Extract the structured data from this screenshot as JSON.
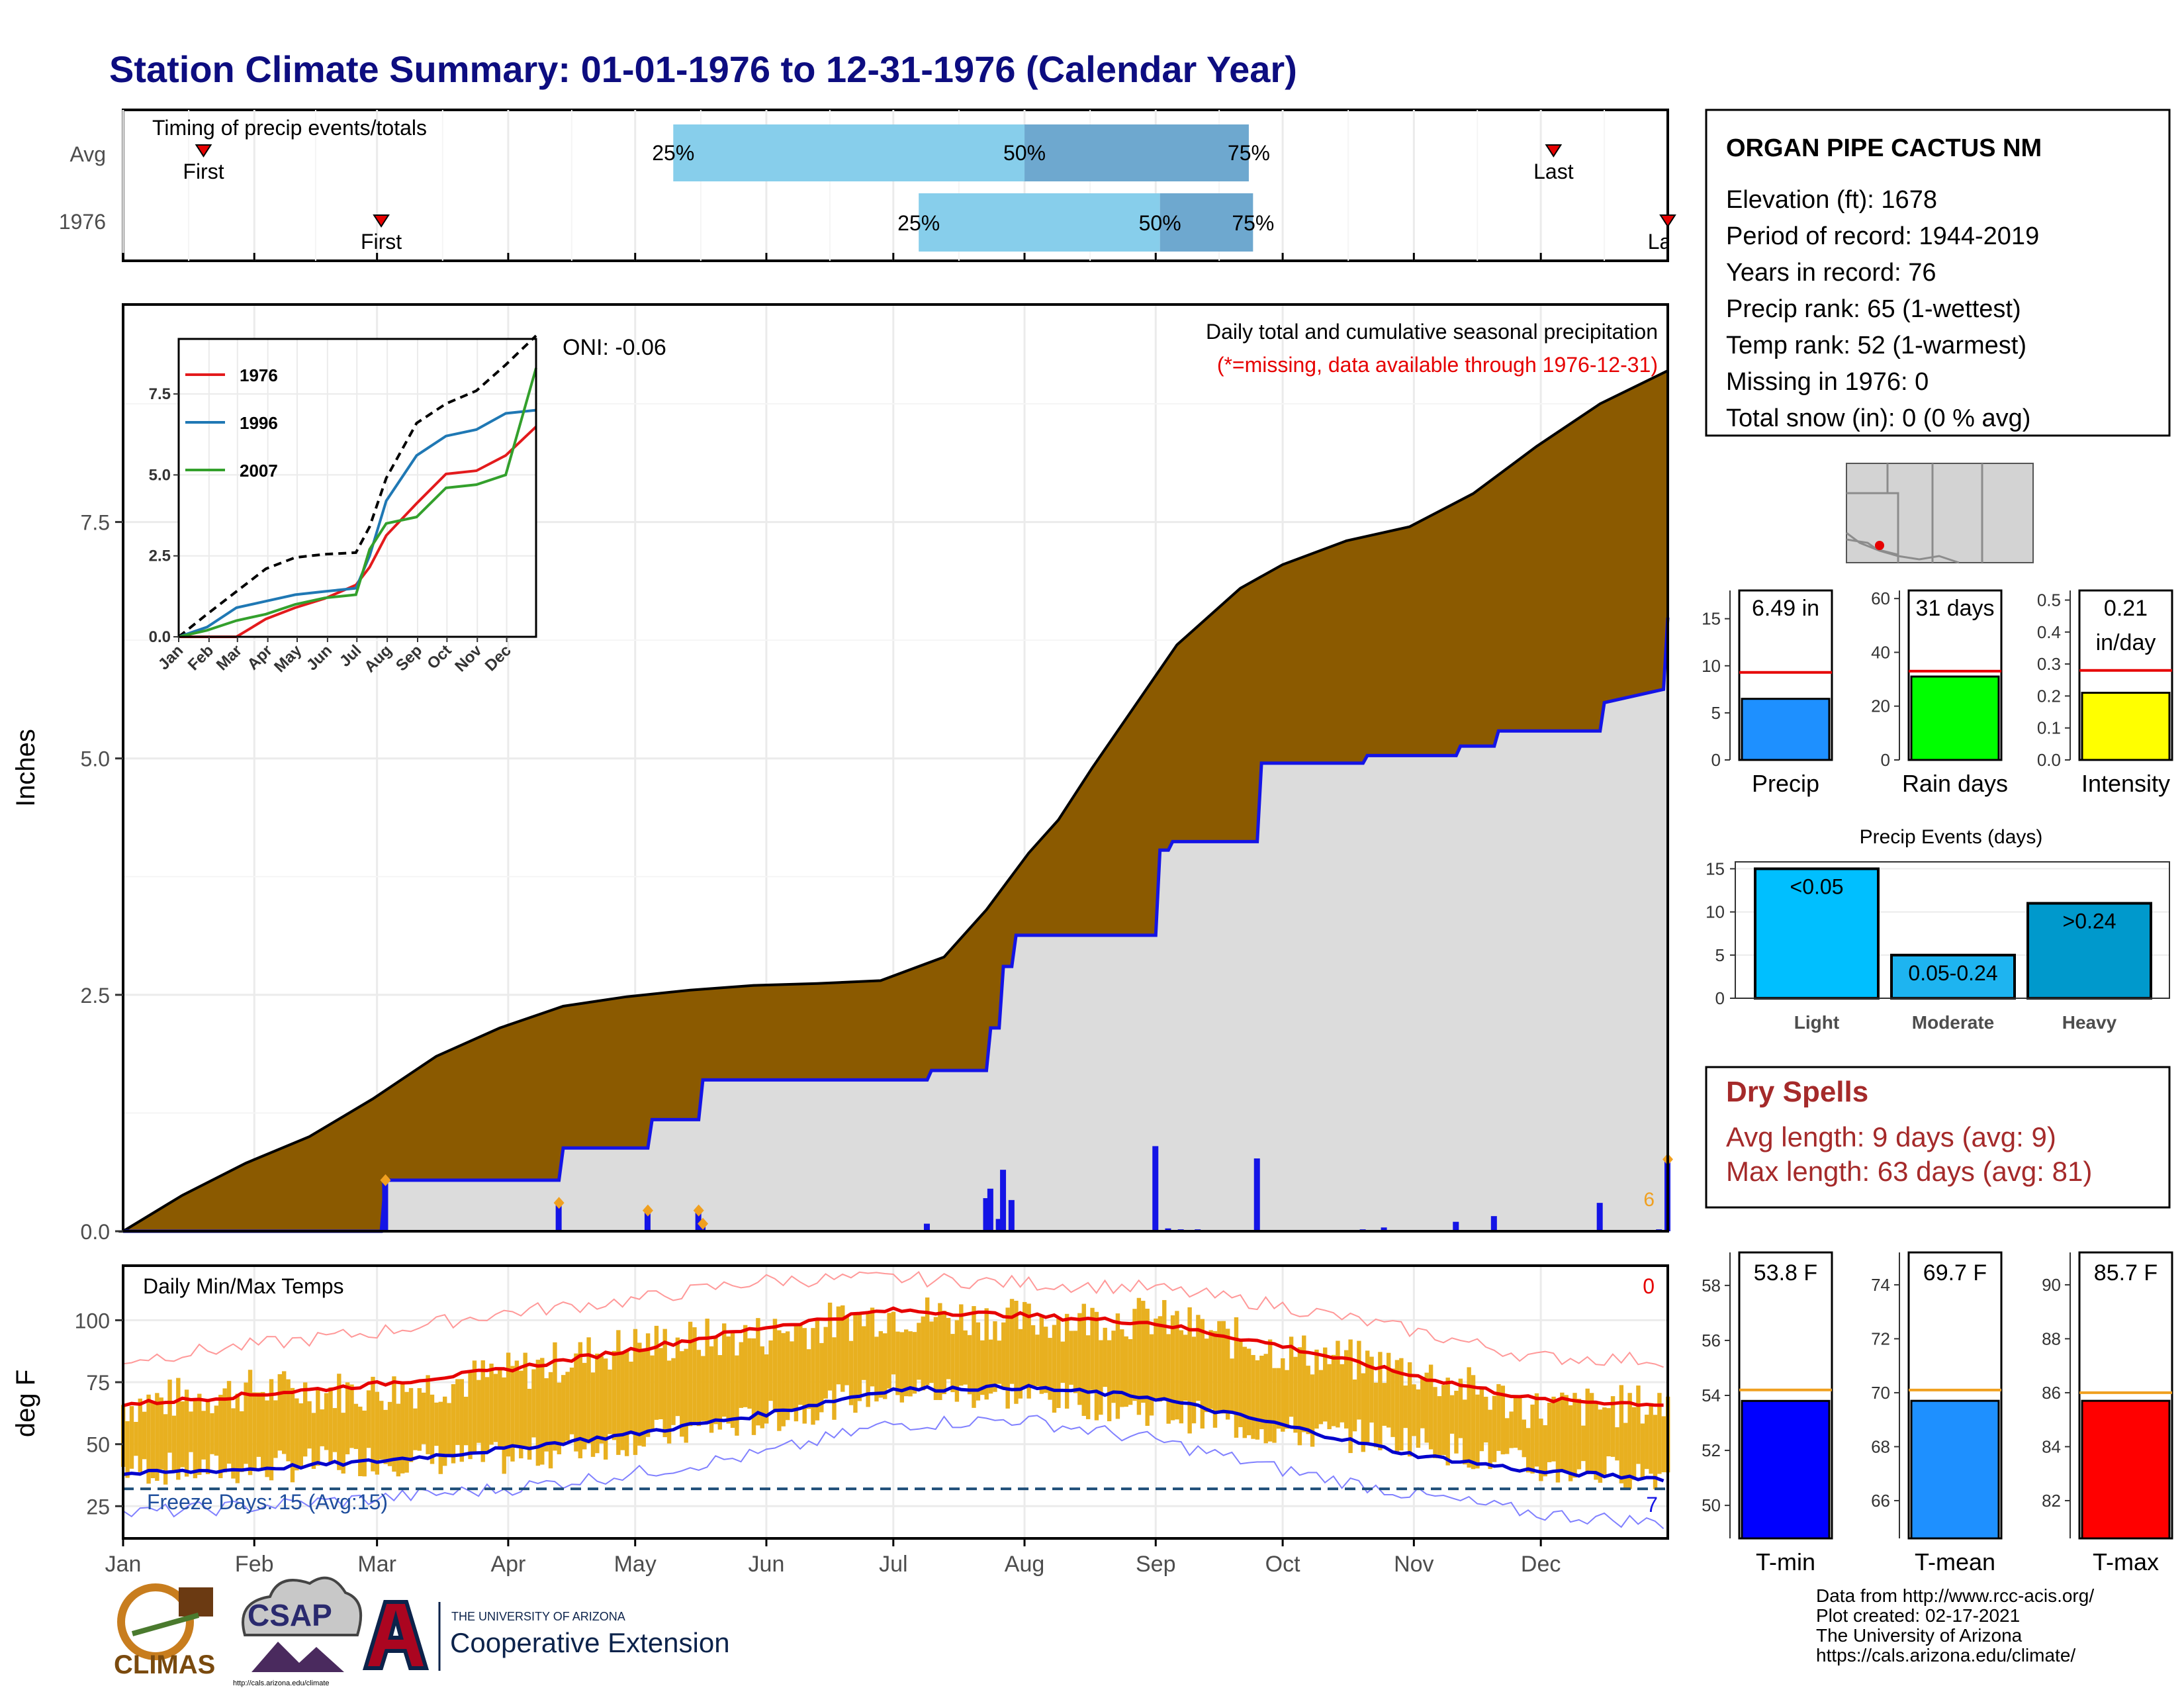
{
  "title": "Station Climate Summary: 01-01-1976 to 12-31-1976 (Calendar Year)",
  "colors": {
    "title": "#0d0d80",
    "cumulative_fill": "#8b5a00",
    "current_fill": "#dcdcdc",
    "current_line": "#1414e6",
    "bar_blue": "#1414e6",
    "bar_marker": "#f0a020",
    "timing_light": "#87ceeb",
    "timing_dark": "#6ea8cf",
    "temp_band": "#e8b020",
    "tmax_line": "#e60000",
    "tmin_line": "#0000cc",
    "dry_text": "#a52a2a",
    "precip_bar": "#1e90ff",
    "raindays_bar": "#00ff00",
    "intensity_bar": "#ffff00",
    "events_light": "#00bfff",
    "events_moderate": "#1eb4f0",
    "events_heavy": "#0099cc",
    "tmin_bar": "#0000ff",
    "tmean_bar": "#1e90ff",
    "tmax_bar": "#ff0000"
  },
  "timing": {
    "title": "Timing of precip events/totals",
    "rows": [
      {
        "label": "Avg",
        "first_label": "First",
        "last_label": "Last",
        "first": "Jan 20",
        "last": "Dec 4",
        "p25_label": "25%",
        "p50_label": "50%",
        "p75_label": "75%",
        "p25": "May 10",
        "p50": "Aug 1",
        "p75": "Sep 23"
      },
      {
        "label": "1976",
        "first_label": "First",
        "last_label": "Last",
        "first": "Mar 2",
        "last": "Dec 31",
        "p25_label": "25%",
        "p50_label": "50%",
        "p75_label": "75%",
        "p25": "Jul 7",
        "p50": "Sep 2",
        "p75": "Sep 24"
      }
    ]
  },
  "main_chart": {
    "ylabel": "Inches",
    "yticks": [
      "0.0",
      "2.5",
      "5.0",
      "7.5"
    ],
    "title_right": "Daily total and cumulative seasonal precipitation",
    "missing_note": "(*=missing, data available through 1976-12-31)",
    "oni": "ONI: -0.06",
    "corner_count": "6"
  },
  "inset": {
    "yticks": [
      "0.0",
      "2.5",
      "5.0",
      "7.5"
    ],
    "xticks": [
      "Jan",
      "Feb",
      "Mar",
      "Apr",
      "May",
      "Jun",
      "Jul",
      "Aug",
      "Sep",
      "Oct",
      "Nov",
      "Dec"
    ],
    "legend": [
      {
        "name": "1976",
        "color": "#e31a1c"
      },
      {
        "name": "1996",
        "color": "#1f78b4"
      },
      {
        "name": "2007",
        "color": "#33a02c"
      }
    ]
  },
  "temp_chart": {
    "ylabel": "deg F",
    "title": "Daily Min/Max Temps",
    "yticks": [
      "25",
      "50",
      "75",
      "100"
    ],
    "freeze_label": "Freeze Days: 15 (Avg:15)",
    "corner_top": "0",
    "corner_bottom": "7"
  },
  "months": [
    "Jan",
    "Feb",
    "Mar",
    "Apr",
    "May",
    "Jun",
    "Jul",
    "Aug",
    "Sep",
    "Oct",
    "Nov",
    "Dec"
  ],
  "station": {
    "name": "ORGAN PIPE CACTUS NM",
    "lines": [
      "Elevation (ft): 1678",
      "Period of record: 1944-2019",
      "Years in record: 76",
      "Precip rank: 65 (1-wettest)",
      "Temp rank: 52 (1-warmest)",
      "Missing in 1976: 0",
      "Total snow (in): 0 (0 % avg)"
    ]
  },
  "mini_bars": [
    {
      "label": "Precip",
      "value_label": "6.49 in",
      "yticks": [
        "0",
        "5",
        "10",
        "15"
      ],
      "ymax": 18
    },
    {
      "label": "Rain days",
      "value_label": "31 days",
      "yticks": [
        "0",
        "20",
        "40",
        "60"
      ],
      "ymax": 63
    },
    {
      "label": "Intensity",
      "value_label": "0.21\nin/day",
      "yticks": [
        "0.0",
        "0.1",
        "0.2",
        "0.3",
        "0.4",
        "0.5"
      ],
      "ymax": 0.53
    }
  ],
  "events": {
    "title": "Precip Events (days)",
    "yticks": [
      "0",
      "5",
      "10",
      "15"
    ],
    "categories": [
      "Light",
      "Moderate",
      "Heavy"
    ],
    "bar_labels": [
      "<0.05",
      "0.05-0.24",
      ">0.24"
    ]
  },
  "dry_spells": {
    "title": "Dry Spells",
    "avg_length": "Avg length: 9 days (avg: 9)",
    "max_length": "Max length: 63 days (avg: 81)"
  },
  "temp_bars": [
    {
      "label": "T-min",
      "value_label": "53.8 F",
      "yticks": [
        "50",
        "52",
        "54",
        "56",
        "58"
      ],
      "ymin": 48.8,
      "ymax": 59.2
    },
    {
      "label": "T-mean",
      "value_label": "69.7 F",
      "yticks": [
        "66",
        "68",
        "70",
        "72",
        "74"
      ],
      "ymin": 64.6,
      "ymax": 75.2
    },
    {
      "label": "T-max",
      "value_label": "85.7 F",
      "yticks": [
        "82",
        "84",
        "86",
        "88",
        "90"
      ],
      "ymin": 80.6,
      "ymax": 91.2
    }
  ],
  "footer": {
    "credits": [
      "Data from http://www.rcc-acis.org/",
      "Plot created: 02-17-2021",
      "The University of Arizona",
      "https://cals.arizona.edu/climate/"
    ],
    "logo_climas": "CLIMAS",
    "logo_csap": "CSAP",
    "logo_csap_url": "http://cals.arizona.edu/climate",
    "logo_ua_small": "THE UNIVERSITY OF ARIZONA",
    "logo_ua_big": "Cooperative Extension"
  },
  "chart_data": [
    {
      "type": "area",
      "title": "Daily total and cumulative seasonal precipitation",
      "ylabel": "Inches",
      "ylim": [
        0,
        9.8
      ],
      "x_unit": "day of year 1976",
      "series": [
        {
          "name": "cumulative_avg",
          "x": [
            1,
            15,
            30,
            45,
            60,
            75,
            90,
            105,
            120,
            135,
            150,
            165,
            180,
            195,
            205,
            215,
            222,
            230,
            240,
            250,
            255,
            265,
            275,
            290,
            305,
            320,
            335,
            350,
            366
          ],
          "values": [
            0.0,
            0.38,
            0.72,
            1.0,
            1.4,
            1.85,
            2.15,
            2.38,
            2.48,
            2.55,
            2.6,
            2.62,
            2.65,
            2.9,
            3.4,
            4.0,
            4.35,
            4.9,
            5.55,
            6.2,
            6.4,
            6.8,
            7.05,
            7.3,
            7.45,
            7.8,
            8.3,
            8.75,
            9.1
          ]
        },
        {
          "name": "1976",
          "x": [
            1,
            62,
            63,
            104,
            105,
            125,
            126,
            137,
            138,
            191,
            192,
            205,
            206,
            208,
            209,
            211,
            212,
            245,
            246,
            248,
            249,
            269,
            270,
            294,
            295,
            316,
            317,
            325,
            326,
            350,
            351,
            365,
            366
          ],
          "values": [
            0.0,
            0.0,
            0.54,
            0.54,
            0.88,
            0.88,
            1.18,
            1.18,
            1.6,
            1.6,
            1.7,
            1.7,
            2.15,
            2.15,
            2.8,
            2.8,
            3.13,
            3.13,
            4.03,
            4.03,
            4.12,
            4.12,
            4.95,
            4.95,
            5.03,
            5.03,
            5.13,
            5.13,
            5.29,
            5.29,
            5.59,
            5.73,
            6.49
          ]
        }
      ],
      "daily_totals": {
        "x": [
          63,
          104,
          125,
          137,
          138,
          191,
          205,
          206,
          208,
          209,
          211,
          245,
          248,
          251,
          255,
          269,
          294,
          299,
          316,
          325,
          350,
          364,
          366
        ],
        "values": [
          0.54,
          0.3,
          0.2,
          0.2,
          0.05,
          0.08,
          0.35,
          0.45,
          0.13,
          0.65,
          0.33,
          0.9,
          0.03,
          0.02,
          0.02,
          0.77,
          0.02,
          0.04,
          0.1,
          0.16,
          0.3,
          0.02,
          0.76
        ]
      }
    },
    {
      "type": "line",
      "title": "inset cumulative precipitation",
      "ylim": [
        0,
        9.2
      ],
      "x": [
        1,
        30,
        60,
        90,
        120,
        150,
        182,
        196,
        213,
        244,
        274,
        305,
        335,
        366
      ],
      "series": [
        {
          "name": "average",
          "values": [
            0.0,
            0.7,
            1.4,
            2.1,
            2.45,
            2.55,
            2.6,
            3.4,
            4.9,
            6.6,
            7.2,
            7.6,
            8.4,
            9.3
          ]
        },
        {
          "name": "1976",
          "values": [
            0.0,
            0.0,
            0.0,
            0.55,
            0.9,
            1.18,
            1.6,
            2.15,
            3.13,
            4.12,
            5.03,
            5.13,
            5.6,
            6.49
          ]
        },
        {
          "name": "1996",
          "values": [
            0.0,
            0.3,
            0.9,
            1.1,
            1.3,
            1.4,
            1.5,
            2.5,
            4.2,
            5.6,
            6.2,
            6.4,
            6.9,
            7.0
          ]
        },
        {
          "name": "2007",
          "values": [
            0.0,
            0.2,
            0.5,
            0.7,
            1.0,
            1.2,
            1.3,
            2.7,
            3.5,
            3.7,
            4.6,
            4.7,
            5.0,
            8.3
          ]
        }
      ]
    },
    {
      "type": "line",
      "title": "Daily Min/Max Temps",
      "ylabel": "deg F",
      "ylim": [
        12,
        122
      ],
      "x": [
        1,
        32,
        60,
        91,
        121,
        152,
        182,
        213,
        244,
        274,
        305,
        335,
        366
      ],
      "series": [
        {
          "name": "avg_tmax",
          "values": [
            66,
            70,
            74,
            80,
            88,
            97,
            104,
            102,
            99,
            90,
            78,
            68,
            66
          ]
        },
        {
          "name": "avg_tmin",
          "values": [
            38,
            40,
            43,
            48,
            54,
            62,
            72,
            73,
            69,
            58,
            46,
            39,
            36
          ]
        },
        {
          "name": "record_high",
          "values": [
            84,
            90,
            95,
            103,
            108,
            116,
            117,
            115,
            113,
            106,
            96,
            85,
            84
          ]
        },
        {
          "name": "record_low",
          "values": [
            22,
            25,
            28,
            32,
            38,
            46,
            58,
            60,
            52,
            40,
            30,
            22,
            18
          ]
        },
        {
          "name": "1976_tmax",
          "values": [
            66,
            72,
            71,
            78,
            90,
            94,
            103,
            100,
            101,
            88,
            80,
            64,
            66
          ]
        },
        {
          "name": "1976_tmin",
          "values": [
            40,
            40,
            44,
            44,
            52,
            60,
            72,
            70,
            64,
            55,
            52,
            40,
            38
          ]
        }
      ],
      "freeze_line": 32
    },
    {
      "type": "bar",
      "title": "Precip Events (days)",
      "categories": [
        "Light",
        "Moderate",
        "Heavy"
      ],
      "values": [
        15,
        5,
        11
      ],
      "ylim": [
        0,
        15.8
      ]
    },
    {
      "type": "bar",
      "categories": [
        "Precip",
        "Rain days",
        "Intensity"
      ],
      "values": [
        6.49,
        31,
        0.21
      ],
      "averages": [
        9.3,
        33,
        0.28
      ]
    },
    {
      "type": "bar",
      "categories": [
        "T-min",
        "T-mean",
        "T-max"
      ],
      "values": [
        53.8,
        69.7,
        85.7
      ],
      "averages": [
        54.2,
        70.1,
        86.0
      ]
    }
  ]
}
